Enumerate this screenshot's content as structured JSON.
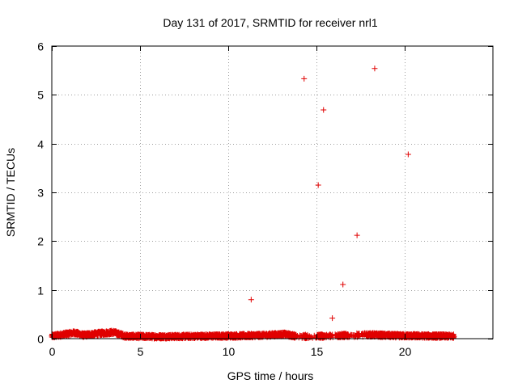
{
  "chart_data": {
    "type": "scatter",
    "title": "Day 131 of 2017, SRMTID for receiver nrl1",
    "xlabel": "GPS time / hours",
    "ylabel": "SRMTID / TECUs",
    "xlim": [
      0,
      25
    ],
    "ylim": [
      0,
      6
    ],
    "xticks": [
      0,
      5,
      10,
      15,
      20
    ],
    "yticks": [
      0,
      1,
      2,
      3,
      4,
      5,
      6
    ],
    "grid": true,
    "marker": "plus",
    "color": "#e00000",
    "series": [
      {
        "name": "SRMTID",
        "outliers": [
          {
            "x": 11.3,
            "y": 0.8
          },
          {
            "x": 14.3,
            "y": 5.33
          },
          {
            "x": 15.1,
            "y": 3.15
          },
          {
            "x": 15.4,
            "y": 4.69
          },
          {
            "x": 15.9,
            "y": 0.42
          },
          {
            "x": 16.5,
            "y": 1.11
          },
          {
            "x": 16.8,
            "y": 0.08
          },
          {
            "x": 17.3,
            "y": 2.12
          },
          {
            "x": 18.3,
            "y": 5.54
          },
          {
            "x": 20.2,
            "y": 3.78
          }
        ],
        "baseline": {
          "x_start": 0.0,
          "x_end": 22.8,
          "step_hours": 0.0083,
          "gaps": [
            [
              13.8,
              14.3
            ],
            [
              14.5,
              15.0
            ],
            [
              15.5,
              16.2
            ],
            [
              16.8,
              17.8
            ]
          ],
          "segments": [
            {
              "x": 0.0,
              "y": 0.05
            },
            {
              "x": 1.3,
              "y": 0.12
            },
            {
              "x": 1.8,
              "y": 0.07
            },
            {
              "x": 2.5,
              "y": 0.1
            },
            {
              "x": 3.5,
              "y": 0.13
            },
            {
              "x": 4.2,
              "y": 0.05
            },
            {
              "x": 6.0,
              "y": 0.04
            },
            {
              "x": 11.0,
              "y": 0.06
            },
            {
              "x": 12.0,
              "y": 0.07
            },
            {
              "x": 13.2,
              "y": 0.09
            },
            {
              "x": 14.0,
              "y": 0.04
            },
            {
              "x": 18.0,
              "y": 0.08
            },
            {
              "x": 19.5,
              "y": 0.06
            },
            {
              "x": 22.8,
              "y": 0.05
            }
          ],
          "noise": 0.04
        }
      }
    ]
  }
}
